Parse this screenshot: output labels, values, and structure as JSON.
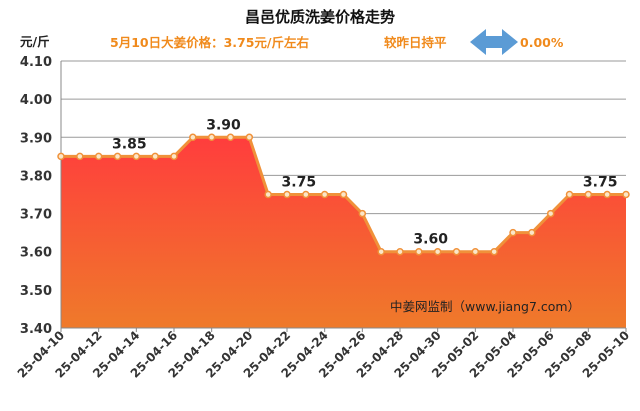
{
  "header": {
    "title": "昌邑优质洗姜价格走势",
    "price_text": "5月10日大姜价格：3.75元/斤左右",
    "change_text": "较昨日持平",
    "change_value": "0.00%",
    "change_icon": "left-right-arrow-icon"
  },
  "watermark": "中姜网监制（www.jiang7.com）",
  "colors": {
    "line": "#f0913a",
    "marker_fill": "#fbe6c8",
    "area_top": "#ff3d3d",
    "area_bottom": "#ef7a2a",
    "arrow": "#5b9bd5",
    "subtitle": "#f08a1c",
    "grid": "#9a9a9a"
  },
  "chart_data": {
    "type": "area",
    "title": "昌邑优质洗姜价格走势",
    "ylabel": "元/斤",
    "xlabel": "",
    "ylim": [
      3.4,
      4.1
    ],
    "yticks": [
      "3.40",
      "3.50",
      "3.60",
      "3.70",
      "3.80",
      "3.90",
      "4.00",
      "4.10"
    ],
    "grid": true,
    "x": [
      "25-04-10",
      "25-04-11",
      "25-04-12",
      "25-04-13",
      "25-04-14",
      "25-04-15",
      "25-04-16",
      "25-04-17",
      "25-04-18",
      "25-04-19",
      "25-04-20",
      "25-04-21",
      "25-04-22",
      "25-04-23",
      "25-04-24",
      "25-04-25",
      "25-04-26",
      "25-04-27",
      "25-04-28",
      "25-04-29",
      "25-04-30",
      "25-05-01",
      "25-05-02",
      "25-05-03",
      "25-05-04",
      "25-05-05",
      "25-05-06",
      "25-05-07",
      "25-05-08",
      "25-05-09",
      "25-05-10"
    ],
    "xtick_labels": [
      "25-04-10",
      "25-04-12",
      "25-04-14",
      "25-04-16",
      "25-04-18",
      "25-04-20",
      "25-04-22",
      "25-04-24",
      "25-04-26",
      "25-04-28",
      "25-04-30",
      "25-05-02",
      "25-05-04",
      "25-05-06",
      "25-05-08",
      "25-05-10"
    ],
    "values": [
      3.85,
      3.85,
      3.85,
      3.85,
      3.85,
      3.85,
      3.85,
      3.9,
      3.9,
      3.9,
      3.9,
      3.75,
      3.75,
      3.75,
      3.75,
      3.75,
      3.7,
      3.6,
      3.6,
      3.6,
      3.6,
      3.6,
      3.6,
      3.6,
      3.65,
      3.65,
      3.7,
      3.75,
      3.75,
      3.75,
      3.75
    ],
    "data_labels": [
      {
        "index": 4,
        "text": "3.85"
      },
      {
        "index": 9,
        "text": "3.90"
      },
      {
        "index": 13,
        "text": "3.75"
      },
      {
        "index": 20,
        "text": "3.60"
      },
      {
        "index": 29,
        "text": "3.75"
      }
    ]
  }
}
